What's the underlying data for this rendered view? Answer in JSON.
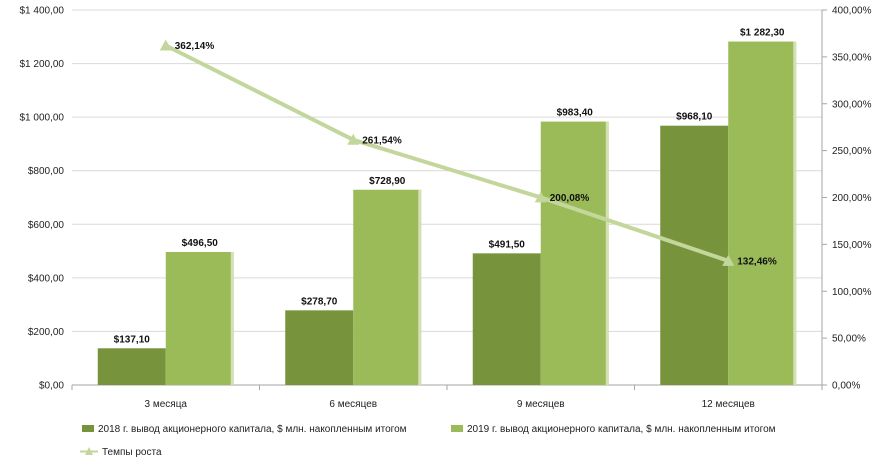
{
  "chart_data": {
    "type": "bar",
    "categories": [
      "3 месяца",
      "6 месяцев",
      "9 месяцев",
      "12 месяцев"
    ],
    "series": [
      {
        "name": "2018 г. вывод  акционерного капитала, $ млн. накопленным  итогом",
        "type": "bar",
        "axis": "left",
        "color": "#77933c",
        "values": [
          137.1,
          278.7,
          491.5,
          968.1
        ],
        "labels": [
          "$137,10",
          "$278,70",
          "$491,50",
          "$968,10"
        ]
      },
      {
        "name": "2019 г. вывод  акционерного капитала, $ млн. накопленным  итогом",
        "type": "bar",
        "axis": "left",
        "color": "#9bbb59",
        "values": [
          496.5,
          728.9,
          983.4,
          1282.3
        ],
        "labels": [
          "$496,50",
          "$728,90",
          "$983,40",
          "$1 282,30"
        ]
      },
      {
        "name": "Темпы роста",
        "type": "line",
        "axis": "right",
        "color": "#c3d69b",
        "values": [
          362.14,
          261.54,
          200.08,
          132.46
        ],
        "labels": [
          "362,14%",
          "261,54%",
          "200,08%",
          "132,46%"
        ]
      }
    ],
    "y_left": {
      "ylim": [
        0,
        1400
      ],
      "ticks": [
        0,
        200,
        400,
        600,
        800,
        1000,
        1200,
        1400
      ],
      "tick_labels": [
        "$0,00",
        "$200,00",
        "$400,00",
        "$600,00",
        "$800,00",
        "$1 000,00",
        "$1 200,00",
        "$1 400,00"
      ]
    },
    "y_right": {
      "ylim": [
        0,
        400
      ],
      "ticks": [
        0,
        50,
        100,
        150,
        200,
        250,
        300,
        350,
        400
      ],
      "tick_labels": [
        "0,00%",
        "50,00%",
        "100,00%",
        "150,00%",
        "200,00%",
        "250,00%",
        "300,00%",
        "350,00%",
        "400,00%"
      ]
    },
    "grid": true,
    "legend_position": "bottom"
  }
}
